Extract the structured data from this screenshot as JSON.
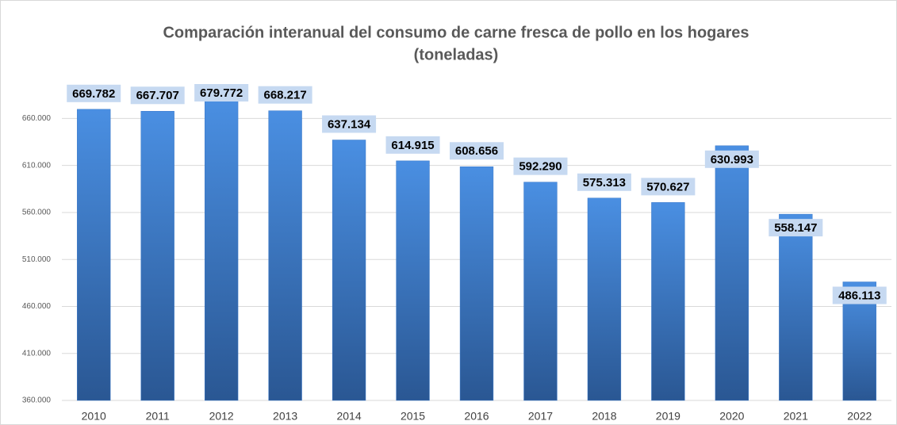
{
  "chart_data": {
    "type": "bar",
    "title": "Comparación interanual del consumo de carne fresca de pollo  en los hogares",
    "subtitle": "(toneladas)",
    "categories": [
      "2010",
      "2011",
      "2012",
      "2013",
      "2014",
      "2015",
      "2016",
      "2017",
      "2018",
      "2019",
      "2020",
      "2021",
      "2022"
    ],
    "values": [
      669782,
      667707,
      679772,
      668217,
      637134,
      614915,
      608656,
      592290,
      575313,
      570627,
      630993,
      558147,
      486113
    ],
    "value_labels": [
      "669.782",
      "667.707",
      "679.772",
      "668.217",
      "637.134",
      "614.915",
      "608.656",
      "592.290",
      "575.313",
      "570.627",
      "630.993",
      "558.147",
      "486.113"
    ],
    "color": "#3a78c8",
    "ylim": [
      360000,
      700000
    ],
    "yticks": [
      {
        "value": 360000,
        "label": "360.000"
      },
      {
        "value": 410000,
        "label": "410.000"
      },
      {
        "value": 460000,
        "label": "460.000"
      },
      {
        "value": 510000,
        "label": "510.000"
      },
      {
        "value": 560000,
        "label": "560.000"
      },
      {
        "value": 610000,
        "label": "610.000"
      },
      {
        "value": 660000,
        "label": "660.000"
      }
    ],
    "grid": true
  }
}
